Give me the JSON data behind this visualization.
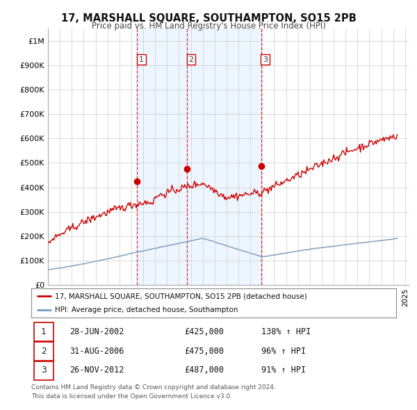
{
  "title": "17, MARSHALL SQUARE, SOUTHAMPTON, SO15 2PB",
  "subtitle": "Price paid vs. HM Land Registry's House Price Index (HPI)",
  "legend_label_red": "17, MARSHALL SQUARE, SOUTHAMPTON, SO15 2PB (detached house)",
  "legend_label_blue": "HPI: Average price, detached house, Southampton",
  "footer1": "Contains HM Land Registry data © Crown copyright and database right 2024.",
  "footer2": "This data is licensed under the Open Government Licence v3.0.",
  "transactions": [
    {
      "num": "1",
      "date": "28-JUN-2002",
      "price": "£425,000",
      "hpi": "138% ↑ HPI",
      "year": 2002.5
    },
    {
      "num": "2",
      "date": "31-AUG-2006",
      "price": "£475,000",
      "hpi": "96% ↑ HPI",
      "year": 2006.67
    },
    {
      "num": "3",
      "date": "26-NOV-2012",
      "price": "£487,000",
      "hpi": "91% ↑ HPI",
      "year": 2012.9
    }
  ],
  "red_color": "#cc0000",
  "blue_color": "#7799bb",
  "shade_color": "#ddeeff",
  "dashed_color": "#cc0000",
  "bg_color": "#ffffff",
  "grid_color": "#cccccc",
  "sale_points_x": [
    2002.5,
    2006.67,
    2012.9
  ],
  "sale_points_y": [
    425000,
    475000,
    487000
  ],
  "sale_labels": [
    "1",
    "2",
    "3"
  ],
  "xlim": [
    1995,
    2025.3
  ],
  "ylim": [
    0,
    1050000
  ],
  "yticks": [
    0,
    100000,
    200000,
    300000,
    400000,
    500000,
    600000,
    700000,
    800000,
    900000,
    1000000
  ],
  "ytick_labels": [
    "£0",
    "£100K",
    "£200K",
    "£300K",
    "£400K",
    "£500K",
    "£600K",
    "£700K",
    "£800K",
    "£900K",
    "£1M"
  ],
  "xticks": [
    1995,
    1996,
    1997,
    1998,
    1999,
    2000,
    2001,
    2002,
    2003,
    2004,
    2005,
    2006,
    2007,
    2008,
    2009,
    2010,
    2011,
    2012,
    2013,
    2014,
    2015,
    2016,
    2017,
    2018,
    2019,
    2020,
    2021,
    2022,
    2023,
    2024,
    2025
  ]
}
